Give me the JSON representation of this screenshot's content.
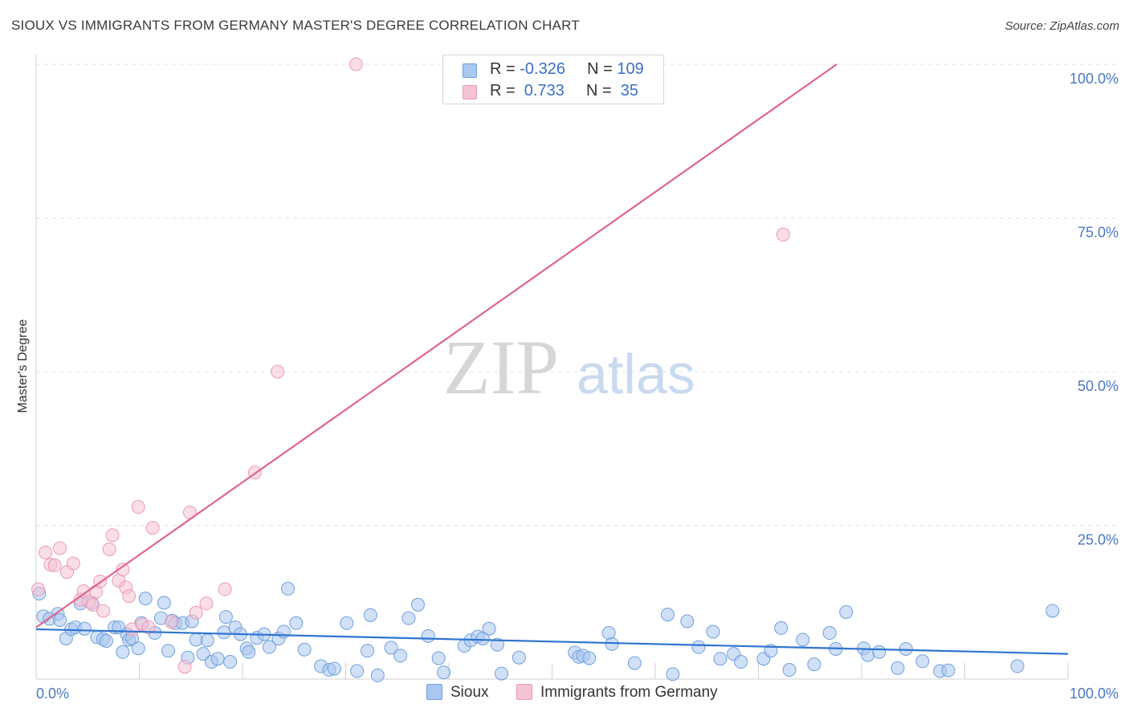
{
  "title": "SIOUX VS IMMIGRANTS FROM GERMANY MASTER'S DEGREE CORRELATION CHART",
  "source": "Source: ZipAtlas.com",
  "watermark": {
    "zip": "ZIP",
    "atlas": "atlas"
  },
  "colors": {
    "sioux_fill": "#a9c7f0",
    "sioux_stroke": "#6f9fdc",
    "sioux_line": "#2f74d0",
    "germany_fill": "#f6c3d3",
    "germany_stroke": "#ec9ab4",
    "germany_line": "#e0648f",
    "grid": "#e3e3e3",
    "axis": "#cfcfcf",
    "tick_text": "#4a78c2"
  },
  "legend_box": {
    "rows": [
      {
        "r_label": "R = ",
        "r_value": "-0.326",
        "n_label": "N = ",
        "n_value": "109"
      },
      {
        "r_label": "R = ",
        "r_value": " 0.733",
        "n_label": "N = ",
        "n_value": " 35"
      }
    ]
  },
  "bottom_legend": {
    "sioux": "Sioux",
    "germany": "Immigrants from Germany"
  },
  "chart_data": {
    "type": "scatter",
    "title": "SIOUX VS IMMIGRANTS FROM GERMANY MASTER'S DEGREE CORRELATION CHART",
    "xlabel": "",
    "ylabel": "Master's Degree",
    "xlim": [
      0,
      100
    ],
    "ylim": [
      0,
      100
    ],
    "x_tick_labels": [
      "0.0%",
      "100.0%"
    ],
    "y_ticks": [
      25,
      50,
      75,
      100
    ],
    "y_tick_labels": [
      "25.0%",
      "50.0%",
      "75.0%",
      "100.0%"
    ],
    "grid": true,
    "series": [
      {
        "name": "Sioux",
        "R": -0.326,
        "N": 109,
        "trend": {
          "x": [
            0,
            100
          ],
          "y": [
            8.1,
            4.1
          ]
        },
        "points": [
          [
            0.3,
            13.9
          ],
          [
            0.7,
            10.2
          ],
          [
            1.3,
            9.8
          ],
          [
            2.1,
            10.6
          ],
          [
            2.3,
            9.6
          ],
          [
            2.9,
            6.6
          ],
          [
            3.4,
            8.1
          ],
          [
            3.8,
            8.4
          ],
          [
            4.3,
            12.3
          ],
          [
            4.7,
            8.2
          ],
          [
            5.4,
            12.4
          ],
          [
            5.9,
            6.8
          ],
          [
            6.5,
            6.5
          ],
          [
            6.8,
            6.2
          ],
          [
            7.6,
            8.4
          ],
          [
            8.0,
            8.4
          ],
          [
            8.4,
            4.4
          ],
          [
            8.8,
            7.3
          ],
          [
            9.0,
            6.4
          ],
          [
            9.3,
            6.6
          ],
          [
            9.9,
            5.0
          ],
          [
            10.2,
            9.1
          ],
          [
            10.6,
            13.1
          ],
          [
            11.5,
            7.5
          ],
          [
            12.1,
            9.9
          ],
          [
            12.4,
            12.4
          ],
          [
            12.8,
            4.6
          ],
          [
            13.2,
            9.5
          ],
          [
            13.5,
            9.1
          ],
          [
            14.2,
            9.1
          ],
          [
            14.7,
            3.5
          ],
          [
            15.1,
            9.4
          ],
          [
            15.5,
            6.4
          ],
          [
            16.2,
            4.1
          ],
          [
            16.6,
            6.3
          ],
          [
            17.0,
            2.8
          ],
          [
            17.6,
            3.3
          ],
          [
            18.2,
            7.6
          ],
          [
            18.4,
            10.1
          ],
          [
            18.8,
            2.8
          ],
          [
            19.3,
            8.4
          ],
          [
            19.8,
            7.3
          ],
          [
            20.4,
            5.0
          ],
          [
            20.6,
            4.4
          ],
          [
            21.4,
            6.7
          ],
          [
            22.1,
            7.3
          ],
          [
            22.6,
            5.2
          ],
          [
            23.5,
            6.6
          ],
          [
            24.0,
            7.7
          ],
          [
            24.4,
            14.7
          ],
          [
            25.2,
            9.1
          ],
          [
            26.0,
            4.8
          ],
          [
            27.6,
            2.1
          ],
          [
            28.4,
            1.5
          ],
          [
            28.9,
            1.7
          ],
          [
            30.1,
            9.1
          ],
          [
            31.1,
            1.3
          ],
          [
            32.1,
            4.6
          ],
          [
            32.4,
            10.4
          ],
          [
            33.1,
            0.6
          ],
          [
            34.4,
            5.1
          ],
          [
            35.3,
            3.8
          ],
          [
            36.1,
            9.9
          ],
          [
            37.0,
            12.1
          ],
          [
            38.0,
            7.0
          ],
          [
            39.0,
            3.4
          ],
          [
            39.5,
            1.1
          ],
          [
            41.5,
            5.4
          ],
          [
            42.1,
            6.3
          ],
          [
            42.8,
            6.9
          ],
          [
            43.3,
            6.6
          ],
          [
            43.9,
            8.2
          ],
          [
            44.7,
            5.6
          ],
          [
            45.1,
            0.9
          ],
          [
            46.8,
            3.5
          ],
          [
            52.2,
            4.3
          ],
          [
            52.6,
            3.6
          ],
          [
            53.0,
            3.8
          ],
          [
            53.6,
            3.4
          ],
          [
            55.5,
            7.5
          ],
          [
            55.8,
            5.7
          ],
          [
            58.0,
            2.6
          ],
          [
            61.2,
            10.5
          ],
          [
            61.7,
            0.8
          ],
          [
            63.1,
            9.4
          ],
          [
            64.2,
            5.2
          ],
          [
            65.6,
            7.7
          ],
          [
            66.3,
            3.3
          ],
          [
            67.6,
            4.1
          ],
          [
            68.3,
            2.8
          ],
          [
            70.5,
            3.3
          ],
          [
            71.2,
            4.6
          ],
          [
            72.2,
            8.3
          ],
          [
            73.0,
            1.5
          ],
          [
            74.3,
            6.4
          ],
          [
            75.4,
            2.4
          ],
          [
            76.9,
            7.5
          ],
          [
            77.5,
            4.9
          ],
          [
            78.5,
            10.9
          ],
          [
            80.2,
            5.0
          ],
          [
            80.6,
            3.9
          ],
          [
            81.7,
            4.4
          ],
          [
            83.5,
            1.8
          ],
          [
            84.3,
            4.9
          ],
          [
            85.9,
            2.9
          ],
          [
            87.6,
            1.3
          ],
          [
            88.4,
            1.4
          ],
          [
            95.1,
            2.1
          ],
          [
            98.5,
            11.1
          ]
        ]
      },
      {
        "name": "Immigrants from Germany",
        "R": 0.733,
        "N": 35,
        "trend": {
          "x": [
            0,
            77.6
          ],
          "y": [
            8.4,
            100
          ]
        },
        "points": [
          [
            0.2,
            14.6
          ],
          [
            0.9,
            20.6
          ],
          [
            1.4,
            18.6
          ],
          [
            1.8,
            18.5
          ],
          [
            2.3,
            21.3
          ],
          [
            3.0,
            17.4
          ],
          [
            3.6,
            18.8
          ],
          [
            4.3,
            12.9
          ],
          [
            4.6,
            14.3
          ],
          [
            5.1,
            12.6
          ],
          [
            5.5,
            12.1
          ],
          [
            5.8,
            14.2
          ],
          [
            6.2,
            15.9
          ],
          [
            6.5,
            11.1
          ],
          [
            7.1,
            21.1
          ],
          [
            7.4,
            23.4
          ],
          [
            8.0,
            16.0
          ],
          [
            8.4,
            17.8
          ],
          [
            8.7,
            14.9
          ],
          [
            9.0,
            13.5
          ],
          [
            9.3,
            8.1
          ],
          [
            9.9,
            28.0
          ],
          [
            10.3,
            8.9
          ],
          [
            10.9,
            8.4
          ],
          [
            11.3,
            24.6
          ],
          [
            13.1,
            9.3
          ],
          [
            14.4,
            2.0
          ],
          [
            14.9,
            27.1
          ],
          [
            15.5,
            10.8
          ],
          [
            16.5,
            12.3
          ],
          [
            18.3,
            14.6
          ],
          [
            21.2,
            33.6
          ],
          [
            23.4,
            50.0
          ],
          [
            31.0,
            100.0
          ],
          [
            72.4,
            72.3
          ]
        ]
      }
    ]
  }
}
